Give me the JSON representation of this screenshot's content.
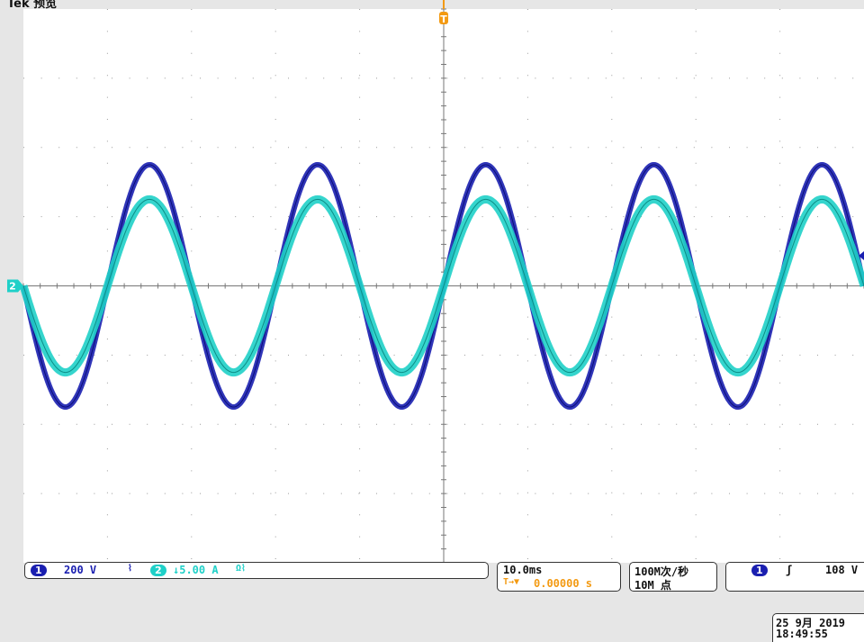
{
  "status": {
    "top_left": "Tek 预览"
  },
  "chart_data": {
    "type": "line",
    "title": "",
    "xlabel": "",
    "ylabel": "",
    "timebase_per_div": "10.0ms",
    "x_divisions": 10,
    "y_divisions": 8,
    "xlim_ms": [
      -50,
      50
    ],
    "grid": true,
    "series": [
      {
        "channel": "1",
        "color": "#1a1fb0",
        "volts_per_div": "200 V",
        "frequency_hz": 50,
        "amplitude_div": 1.75,
        "phase_deg": 0
      },
      {
        "channel": "2",
        "color": "#1fd0c8",
        "amps_per_div": "5.00 A",
        "frequency_hz": 50,
        "amplitude_div": 1.25,
        "phase_deg": 0
      }
    ],
    "trigger": {
      "channel": "1",
      "level": "108 V",
      "slope": "rising"
    }
  },
  "footer": {
    "ch1_id": "1",
    "ch1_scale": "200 V",
    "ch1_coupling": "⌇",
    "ch2_id": "2",
    "ch2_scale": "↓5.00 A",
    "ch2_coupling": "Ω⌇",
    "timebase": "10.0ms",
    "trigger_pos_prefix": "T→▼",
    "trigger_pos": "0.00000 s",
    "sample_rate": "100M次/秒",
    "record_length": "10M 点",
    "trigger_ch": "1",
    "trigger_slope": "ʃ",
    "trigger_level": "108 V",
    "date": "25 9月  2019",
    "time": "18:49:55"
  },
  "markers": {
    "trigger_letter": "T",
    "ch2_ground_label": "2"
  }
}
